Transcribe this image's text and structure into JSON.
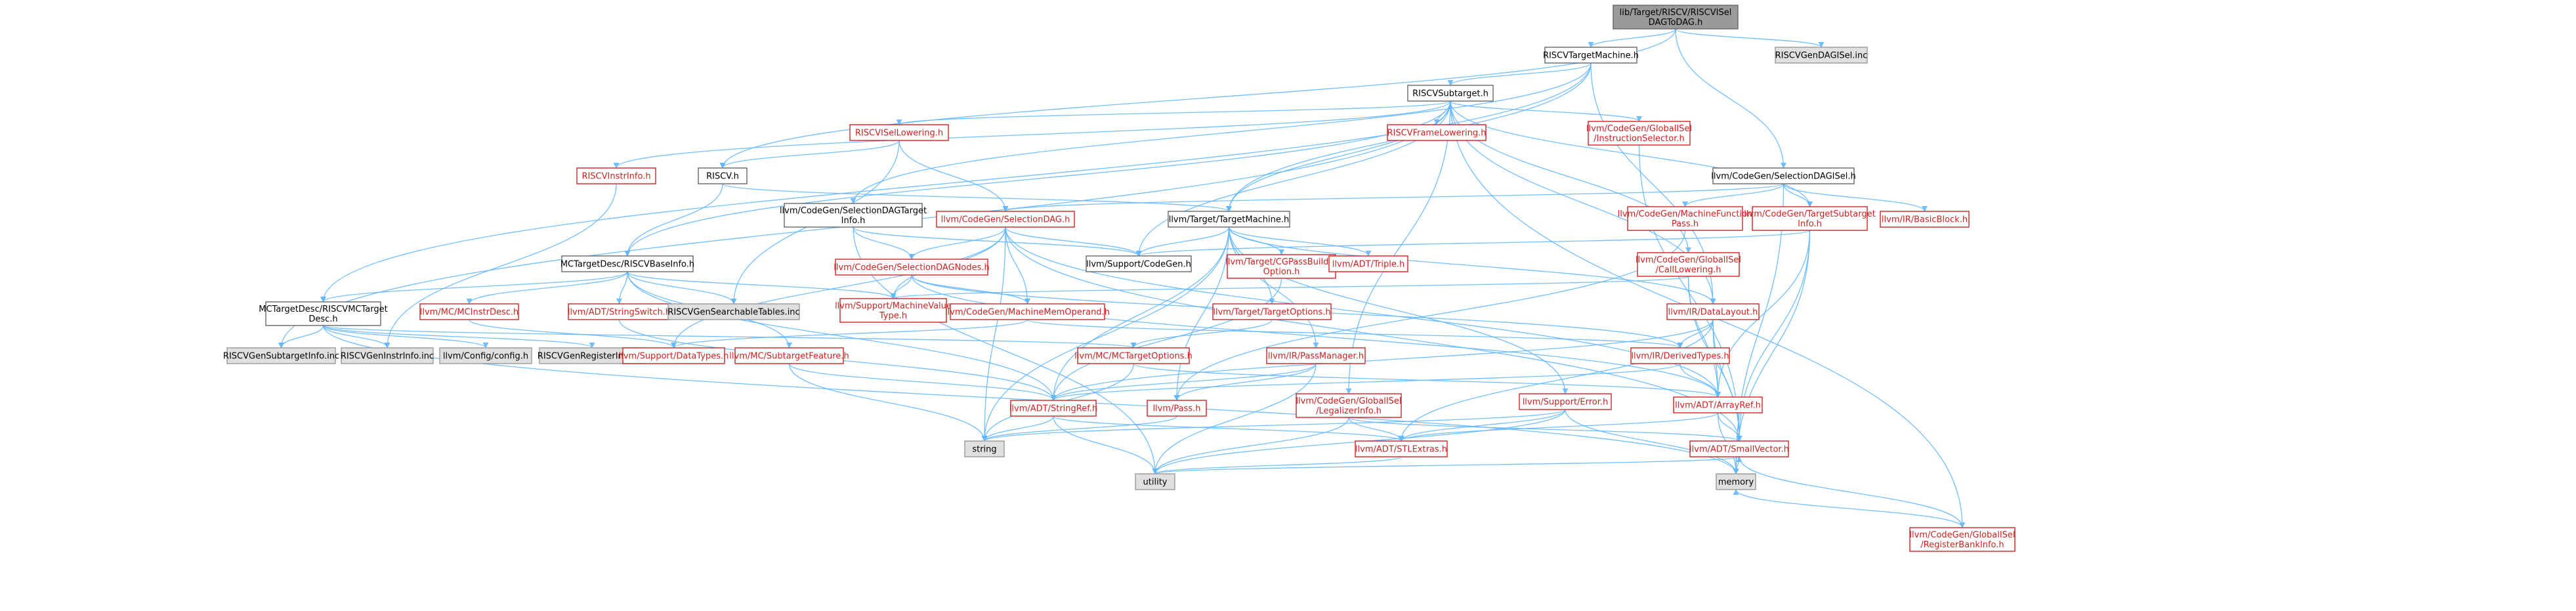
{
  "colors": {
    "edge": "#63b8ff",
    "root_fill": "#9a9a9a",
    "gray_fill": "#e0e0e0",
    "red_text": "#cc2222"
  },
  "nodes": [
    {
      "id": "root",
      "style": "root",
      "lines": [
        "lib/Target/RISCV/RISCVISel",
        "DAGToDAG.h"
      ]
    },
    {
      "id": "riscvtm",
      "style": "white",
      "lines": [
        "RISCVTargetMachine.h"
      ]
    },
    {
      "id": "genisel",
      "style": "gray",
      "lines": [
        "RISCVGenDAGISel.inc"
      ]
    },
    {
      "id": "subtarget",
      "style": "white",
      "lines": [
        "RISCVSubtarget.h"
      ]
    },
    {
      "id": "iseltower",
      "style": "red",
      "lines": [
        "RISCVISelLowering.h"
      ]
    },
    {
      "id": "framelow",
      "style": "red",
      "lines": [
        "RISCVFrameLowering.h"
      ]
    },
    {
      "id": "gisel_is",
      "style": "red",
      "lines": [
        "llvm/CodeGen/GlobalISel",
        "/InstructionSelector.h"
      ]
    },
    {
      "id": "sdagisel",
      "style": "white",
      "lines": [
        "llvm/CodeGen/SelectionDAGISel.h"
      ]
    },
    {
      "id": "instrinfo",
      "style": "red",
      "lines": [
        "RISCVInstrInfo.h"
      ]
    },
    {
      "id": "riscvh",
      "style": "white",
      "lines": [
        "RISCV.h"
      ]
    },
    {
      "id": "sdagtinfo",
      "style": "white",
      "lines": [
        "llvm/CodeGen/SelectionDAGTarget",
        "Info.h"
      ]
    },
    {
      "id": "sdag",
      "style": "red",
      "lines": [
        "llvm/CodeGen/SelectionDAG.h"
      ]
    },
    {
      "id": "targetmachine",
      "style": "white",
      "lines": [
        "llvm/Target/TargetMachine.h"
      ]
    },
    {
      "id": "mfpass",
      "style": "red",
      "lines": [
        "llvm/CodeGen/MachineFunction",
        "Pass.h"
      ]
    },
    {
      "id": "tsubinfo",
      "style": "red",
      "lines": [
        "llvm/CodeGen/TargetSubtarget",
        "Info.h"
      ]
    },
    {
      "id": "basicblock",
      "style": "red",
      "lines": [
        "llvm/IR/BasicBlock.h"
      ]
    },
    {
      "id": "gisel_rbi",
      "style": "red",
      "lines": [
        "llvm/CodeGen/GlobalISel",
        "/RegisterBankInfo.h"
      ]
    },
    {
      "id": "mctd",
      "style": "white",
      "lines": [
        "MCTargetDesc/RISCVBaseInfo.h"
      ]
    },
    {
      "id": "cgpbopt",
      "style": "red",
      "lines": [
        "llvm/Target/CGPassBuilder",
        "Option.h"
      ]
    },
    {
      "id": "sdagnodes",
      "style": "red",
      "lines": [
        "llvm/CodeGen/SelectionDAGNodes.h"
      ]
    },
    {
      "id": "supcg",
      "style": "white",
      "lines": [
        "llvm/Support/CodeGen.h"
      ]
    },
    {
      "id": "triple",
      "style": "red",
      "lines": [
        "llvm/ADT/Triple.h"
      ]
    },
    {
      "id": "gisel_cl",
      "style": "red",
      "lines": [
        "llvm/CodeGen/GlobalISel",
        "/CallLowering.h"
      ]
    },
    {
      "id": "mcmctd",
      "style": "white",
      "lines": [
        "MCTargetDesc/RISCVMCTarget",
        "Desc.h"
      ]
    },
    {
      "id": "mcinstrdesc",
      "style": "red",
      "lines": [
        "llvm/MC/MCInstrDesc.h"
      ]
    },
    {
      "id": "strswitch",
      "style": "red",
      "lines": [
        "llvm/ADT/StringSwitch.h"
      ]
    },
    {
      "id": "gensearch",
      "style": "gray",
      "lines": [
        "RISCVGenSearchableTables.inc"
      ]
    },
    {
      "id": "mvt",
      "style": "red",
      "lines": [
        "llvm/Support/MachineValue",
        "Type.h"
      ]
    },
    {
      "id": "mmo",
      "style": "red",
      "lines": [
        "llvm/CodeGen/MachineMemOperand.h"
      ]
    },
    {
      "id": "targetopts",
      "style": "red",
      "lines": [
        "llvm/Target/TargetOptions.h"
      ]
    },
    {
      "id": "datalayout",
      "style": "red",
      "lines": [
        "llvm/IR/DataLayout.h"
      ]
    },
    {
      "id": "gensubtarget",
      "style": "gray",
      "lines": [
        "RISCVGenSubtargetInfo.inc"
      ]
    },
    {
      "id": "geninstr",
      "style": "gray",
      "lines": [
        "RISCVGenInstrInfo.inc"
      ]
    },
    {
      "id": "config",
      "style": "gray",
      "lines": [
        "llvm/Config/config.h"
      ]
    },
    {
      "id": "genreg",
      "style": "gray",
      "lines": [
        "RISCVGenRegisterInfo.inc"
      ]
    },
    {
      "id": "datatypes",
      "style": "red",
      "lines": [
        "llvm/Support/DataTypes.h"
      ]
    },
    {
      "id": "subfeat",
      "style": "red",
      "lines": [
        "llvm/MC/SubtargetFeature.h"
      ]
    },
    {
      "id": "mctopts",
      "style": "red",
      "lines": [
        "llvm/MC/MCTargetOptions.h"
      ]
    },
    {
      "id": "passmgr",
      "style": "red",
      "lines": [
        "llvm/IR/PassManager.h"
      ]
    },
    {
      "id": "derivedtypes",
      "style": "red",
      "lines": [
        "llvm/IR/DerivedTypes.h"
      ]
    },
    {
      "id": "legalizer",
      "style": "red",
      "lines": [
        "llvm/CodeGen/GlobalISel",
        "/LegalizerInfo.h"
      ]
    },
    {
      "id": "supporterr",
      "style": "red",
      "lines": [
        "llvm/Support/Error.h"
      ]
    },
    {
      "id": "stringref",
      "style": "red",
      "lines": [
        "llvm/ADT/StringRef.h"
      ]
    },
    {
      "id": "pass",
      "style": "red",
      "lines": [
        "llvm/Pass.h"
      ]
    },
    {
      "id": "arrayref",
      "style": "red",
      "lines": [
        "llvm/ADT/ArrayRef.h"
      ]
    },
    {
      "id": "string",
      "style": "gray",
      "lines": [
        "string"
      ]
    },
    {
      "id": "stlextras",
      "style": "red",
      "lines": [
        "llvm/ADT/STLExtras.h"
      ]
    },
    {
      "id": "smallvector",
      "style": "red",
      "lines": [
        "llvm/ADT/SmallVector.h"
      ]
    },
    {
      "id": "utility",
      "style": "gray",
      "lines": [
        "utility"
      ]
    },
    {
      "id": "memory",
      "style": "gray",
      "lines": [
        "memory"
      ]
    }
  ],
  "edges": [
    [
      "root",
      "riscvtm"
    ],
    [
      "root",
      "genisel"
    ],
    [
      "root",
      "riscvh"
    ],
    [
      "root",
      "sdagisel"
    ],
    [
      "riscvtm",
      "subtarget"
    ],
    [
      "riscvtm",
      "mcmctd"
    ],
    [
      "riscvtm",
      "sdagtinfo"
    ],
    [
      "riscvtm",
      "targetmachine"
    ],
    [
      "riscvtm",
      "datalayout"
    ],
    [
      "subtarget",
      "iseltower"
    ],
    [
      "subtarget",
      "framelow"
    ],
    [
      "subtarget",
      "gisel_is"
    ],
    [
      "subtarget",
      "instrinfo"
    ],
    [
      "subtarget",
      "mctd"
    ],
    [
      "subtarget",
      "gisel_cl"
    ],
    [
      "subtarget",
      "legalizer"
    ],
    [
      "subtarget",
      "gisel_rbi"
    ],
    [
      "subtarget",
      "tsubinfo"
    ],
    [
      "subtarget",
      "datalayout"
    ],
    [
      "subtarget",
      "targetmachine"
    ],
    [
      "subtarget",
      "gensubtarget"
    ],
    [
      "subtarget",
      "supcg"
    ],
    [
      "iseltower",
      "riscvh"
    ],
    [
      "iseltower",
      "sdag"
    ],
    [
      "iseltower",
      "gensearch"
    ],
    [
      "gisel_is",
      "smallvector"
    ],
    [
      "sdagisel",
      "sdag"
    ],
    [
      "sdagisel",
      "mfpass"
    ],
    [
      "sdagisel",
      "tsubinfo"
    ],
    [
      "sdagisel",
      "basicblock"
    ],
    [
      "sdagisel",
      "memory"
    ],
    [
      "instrinfo",
      "geninstr"
    ],
    [
      "riscvh",
      "mctd"
    ],
    [
      "riscvh",
      "targetmachine"
    ],
    [
      "sdagtinfo",
      "sdagnodes"
    ],
    [
      "sdagtinfo",
      "supcg"
    ],
    [
      "sdagtinfo",
      "utility"
    ],
    [
      "sdag",
      "sdagnodes"
    ],
    [
      "sdag",
      "mmo"
    ],
    [
      "sdag",
      "supcg"
    ],
    [
      "sdag",
      "arrayref"
    ],
    [
      "sdag",
      "smallvector"
    ],
    [
      "sdag",
      "mvt"
    ],
    [
      "sdag",
      "string"
    ],
    [
      "sdag",
      "datatypes"
    ],
    [
      "targetmachine",
      "triple"
    ],
    [
      "targetmachine",
      "cgpbopt"
    ],
    [
      "targetmachine",
      "supcg"
    ],
    [
      "targetmachine",
      "targetopts"
    ],
    [
      "targetmachine",
      "datalayout"
    ],
    [
      "targetmachine",
      "passmgr"
    ],
    [
      "targetmachine",
      "supporterr"
    ],
    [
      "targetmachine",
      "stringref"
    ],
    [
      "targetmachine",
      "pass"
    ],
    [
      "targetmachine",
      "string"
    ],
    [
      "mfpass",
      "pass"
    ],
    [
      "tsubinfo",
      "arrayref"
    ],
    [
      "tsubinfo",
      "smallvector"
    ],
    [
      "tsubinfo",
      "memory"
    ],
    [
      "tsubinfo",
      "supcg"
    ],
    [
      "gisel_rbi",
      "smallvector"
    ],
    [
      "gisel_rbi",
      "memory"
    ],
    [
      "mctd",
      "mcmctd"
    ],
    [
      "mctd",
      "mcinstrdesc"
    ],
    [
      "mctd",
      "strswitch"
    ],
    [
      "mctd",
      "gensearch"
    ],
    [
      "mctd",
      "mvt"
    ],
    [
      "mctd",
      "subfeat"
    ],
    [
      "mctd",
      "stringref"
    ],
    [
      "cgpbopt",
      "stringref"
    ],
    [
      "sdagnodes",
      "mvt"
    ],
    [
      "sdagnodes",
      "mmo"
    ],
    [
      "sdagnodes",
      "arrayref"
    ],
    [
      "sdagnodes",
      "derivedtypes"
    ],
    [
      "gisel_cl",
      "arrayref"
    ],
    [
      "gisel_cl",
      "smallvector"
    ],
    [
      "gisel_cl",
      "mvt"
    ],
    [
      "mcmctd",
      "gensubtarget"
    ],
    [
      "mcmctd",
      "geninstr"
    ],
    [
      "mcmctd",
      "config"
    ],
    [
      "mcmctd",
      "genreg"
    ],
    [
      "mcmctd",
      "memory"
    ],
    [
      "mcmctd",
      "mctopts"
    ],
    [
      "mcinstrdesc",
      "datatypes"
    ],
    [
      "strswitch",
      "stringref"
    ],
    [
      "mmo",
      "derivedtypes"
    ],
    [
      "mmo",
      "datatypes"
    ],
    [
      "targetopts",
      "mctopts"
    ],
    [
      "datalayout",
      "derivedtypes"
    ],
    [
      "datalayout",
      "arrayref"
    ],
    [
      "datalayout",
      "stringref"
    ],
    [
      "datalayout",
      "stlextras"
    ],
    [
      "datalayout",
      "smallvector"
    ],
    [
      "subfeat",
      "stringref"
    ],
    [
      "subfeat",
      "string"
    ],
    [
      "mctopts",
      "string"
    ],
    [
      "mctopts",
      "arrayref"
    ],
    [
      "passmgr",
      "pass"
    ],
    [
      "passmgr",
      "stringref"
    ],
    [
      "passmgr",
      "utility"
    ],
    [
      "derivedtypes",
      "arrayref"
    ],
    [
      "derivedtypes",
      "stringref"
    ],
    [
      "legalizer",
      "stlextras"
    ],
    [
      "legalizer",
      "smallvector"
    ],
    [
      "legalizer",
      "utility"
    ],
    [
      "supporterr",
      "stlextras"
    ],
    [
      "supporterr",
      "string"
    ],
    [
      "supporterr",
      "utility"
    ],
    [
      "supporterr",
      "memory"
    ],
    [
      "stringref",
      "stlextras"
    ],
    [
      "stringref",
      "string"
    ],
    [
      "stringref",
      "utility"
    ],
    [
      "pass",
      "string"
    ],
    [
      "arrayref",
      "smallvector"
    ],
    [
      "arrayref",
      "memory"
    ],
    [
      "arrayref",
      "stlextras"
    ],
    [
      "stlextras",
      "utility"
    ],
    [
      "smallvector",
      "utility"
    ],
    [
      "smallvector",
      "memory"
    ]
  ]
}
